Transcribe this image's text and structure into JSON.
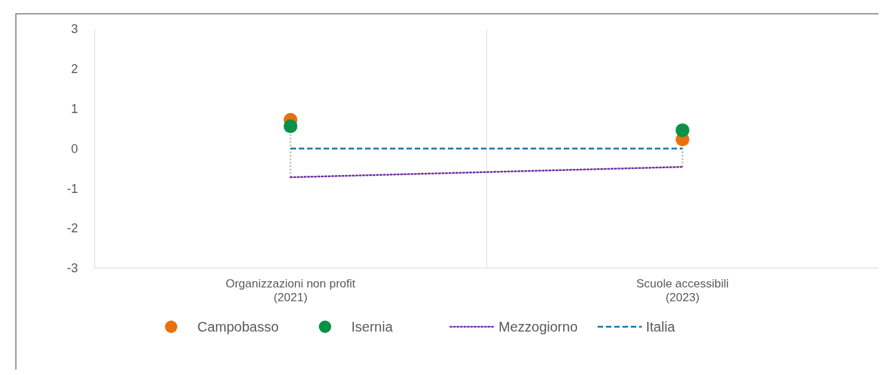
{
  "chart_data": {
    "type": "scatter",
    "categories": [
      "Organizzazioni non profit\n(2021)",
      "Scuole accessibili\n(2023)"
    ],
    "series": [
      {
        "name": "Campobasso",
        "color": "#e97010",
        "values": [
          0.72,
          0.23
        ]
      },
      {
        "name": "Isernia",
        "color": "#079247",
        "values": [
          0.56,
          0.46
        ]
      },
      {
        "name": "Mezzogiorno",
        "type": "line",
        "color": "#7030a0",
        "values": [
          -0.72,
          -0.46
        ],
        "line_style": "dotted",
        "marker": "none"
      },
      {
        "name": "Italia",
        "type": "line",
        "color": "#1273a8",
        "values": [
          0,
          0
        ],
        "line_style": "dashed",
        "marker": "none"
      }
    ],
    "ylim": [
      -3,
      3
    ],
    "yticks": [
      -3,
      -2,
      -1,
      0,
      1,
      2,
      3
    ],
    "marker": "circle",
    "grid": "x",
    "legend": "bottom"
  }
}
